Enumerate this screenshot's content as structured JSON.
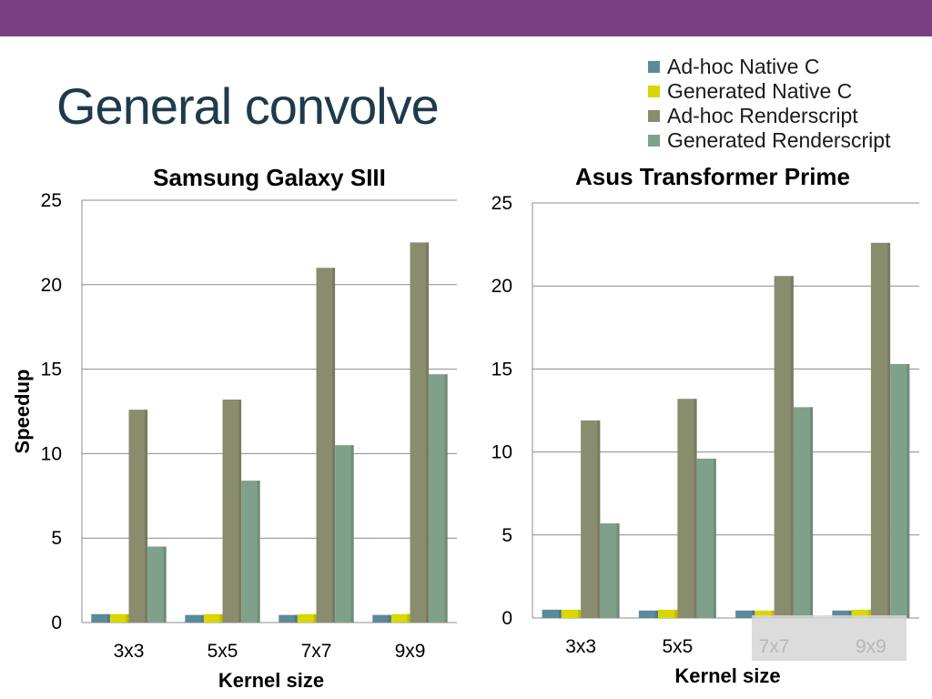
{
  "slide": {
    "title": "General convolve",
    "bar_color": "#7a3e82",
    "title_color": "#1f3a4a"
  },
  "legend": [
    {
      "label": "Ad-hoc Native C",
      "color": "#5b8a99"
    },
    {
      "label": "Generated Native C",
      "color": "#d8d800"
    },
    {
      "label": "Ad-hoc Renderscript",
      "color": "#8a8c6e"
    },
    {
      "label": "Generated Renderscript",
      "color": "#7fa08a"
    }
  ],
  "chart_data": [
    {
      "type": "bar",
      "title": "Samsung Galaxy SIII",
      "xlabel": "Kernel size",
      "ylabel": "Speedup",
      "ylim": [
        0,
        25
      ],
      "yticks": [
        0,
        5,
        10,
        15,
        20,
        25
      ],
      "grid": true,
      "categories": [
        "3x3",
        "5x5",
        "7x7",
        "9x9"
      ],
      "series": [
        {
          "name": "Ad-hoc Native C",
          "values": [
            0.5,
            0.45,
            0.45,
            0.45
          ]
        },
        {
          "name": "Generated Native C",
          "values": [
            0.5,
            0.5,
            0.5,
            0.5
          ]
        },
        {
          "name": "Ad-hoc Renderscript",
          "values": [
            12.6,
            13.2,
            21.0,
            22.5
          ]
        },
        {
          "name": "Generated Renderscript",
          "values": [
            4.5,
            8.4,
            10.5,
            14.7
          ]
        }
      ]
    },
    {
      "type": "bar",
      "title": "Asus Transformer Prime",
      "xlabel": "Kernel size",
      "ylabel": "",
      "ylim": [
        0,
        25
      ],
      "yticks": [
        0,
        5,
        10,
        15,
        20,
        25
      ],
      "grid": true,
      "categories": [
        "3x3",
        "5x5",
        "7x7",
        "9x9"
      ],
      "series": [
        {
          "name": "Ad-hoc Native C",
          "values": [
            0.5,
            0.45,
            0.45,
            0.45
          ]
        },
        {
          "name": "Generated Native C",
          "values": [
            0.5,
            0.5,
            0.45,
            0.5
          ]
        },
        {
          "name": "Ad-hoc Renderscript",
          "values": [
            11.9,
            13.2,
            20.6,
            22.6
          ]
        },
        {
          "name": "Generated Renderscript",
          "values": [
            5.7,
            9.6,
            12.7,
            15.3
          ]
        }
      ]
    }
  ]
}
